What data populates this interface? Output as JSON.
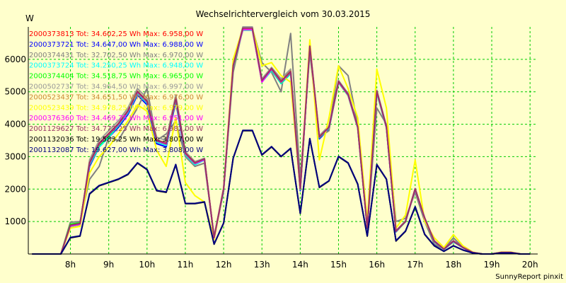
{
  "chart_data": {
    "type": "line",
    "title": "Wechselrichtervergleich vom 30.03.2015",
    "ylabel": "W",
    "xlabel": "",
    "credit": "SunnyReport pinxit",
    "x_tick_labels": [
      "8h",
      "9h",
      "10h",
      "11h",
      "12h",
      "13h",
      "14h",
      "15h",
      "16h",
      "17h",
      "18h",
      "19h",
      "20h"
    ],
    "y_ticks": [
      1000,
      2000,
      3000,
      4000,
      5000,
      6000
    ],
    "xlim": [
      6.9,
      20.2
    ],
    "ylim": [
      0,
      7000
    ],
    "grid": true,
    "legend_position": "top-left",
    "x": [
      7.0,
      7.5,
      7.75,
      8.0,
      8.25,
      8.5,
      8.75,
      9.0,
      9.25,
      9.5,
      9.75,
      10.0,
      10.25,
      10.5,
      10.75,
      11.0,
      11.25,
      11.5,
      11.75,
      12.0,
      12.25,
      12.5,
      12.75,
      13.0,
      13.25,
      13.5,
      13.75,
      14.0,
      14.25,
      14.5,
      14.75,
      15.0,
      15.25,
      15.5,
      15.75,
      16.0,
      16.25,
      16.5,
      16.75,
      17.0,
      17.25,
      17.5,
      17.75,
      18.0,
      18.25,
      18.5,
      18.75,
      19.0,
      19.25,
      19.5,
      19.75,
      20.0
    ],
    "series": [
      {
        "name": "2000373813 Tot: 34.602,25 Wh Max: 6.958,00 W",
        "color": "#ff0000",
        "values": [
          0,
          0,
          0,
          900,
          950,
          2800,
          3400,
          3700,
          4000,
          4400,
          5000,
          4700,
          3500,
          3400,
          4800,
          3100,
          2800,
          2900,
          500,
          2000,
          5800,
          6900,
          6900,
          5300,
          5700,
          5300,
          5600,
          2000,
          6400,
          3600,
          3900,
          5300,
          4900,
          3900,
          800,
          5000,
          3900,
          700,
          1000,
          2000,
          1100,
          400,
          150,
          400,
          200,
          50,
          0,
          0,
          50,
          50,
          0,
          0
        ]
      },
      {
        "name": "2000373721 Tot: 34.647,00 Wh Max: 6.988,00 W",
        "color": "#0000ff",
        "values": [
          0,
          0,
          0,
          850,
          900,
          2700,
          3300,
          3600,
          3900,
          4300,
          4900,
          4600,
          3400,
          3300,
          4700,
          3000,
          2750,
          2900,
          480,
          1950,
          5750,
          6950,
          6950,
          5350,
          5650,
          5350,
          5650,
          1950,
          6350,
          3550,
          3850,
          5300,
          4950,
          3950,
          780,
          5000,
          3900,
          680,
          1000,
          2000,
          1050,
          380,
          140,
          380,
          190,
          45,
          0,
          0,
          45,
          45,
          0,
          0
        ]
      },
      {
        "name": "2000374431 Tot: 32.702,50 Wh Max: 6.970,00 W",
        "color": "#808080",
        "values": [
          0,
          0,
          0,
          980,
          1000,
          2300,
          2700,
          3600,
          3500,
          4000,
          4500,
          5100,
          3500,
          3700,
          4100,
          3000,
          2700,
          2800,
          550,
          2000,
          5600,
          6950,
          6950,
          5900,
          5600,
          5000,
          6800,
          2300,
          6200,
          3600,
          3800,
          5800,
          5500,
          4000,
          800,
          4500,
          4000,
          1000,
          1100,
          1900,
          1000,
          300,
          150,
          500,
          200,
          50,
          0,
          0,
          50,
          50,
          0,
          0
        ]
      },
      {
        "name": "2000373724 Tot: 34.250,25 Wh Max: 6.948,00 W",
        "color": "#00ffff",
        "values": [
          0,
          0,
          0,
          900,
          950,
          2750,
          3300,
          3600,
          3950,
          4350,
          4950,
          4650,
          3450,
          3350,
          4750,
          3050,
          2750,
          2900,
          490,
          1980,
          5780,
          6900,
          6900,
          5300,
          5650,
          5250,
          5550,
          1980,
          6380,
          3580,
          3880,
          5280,
          4880,
          3880,
          790,
          4950,
          3880,
          690,
          990,
          1990,
          1090,
          390,
          140,
          390,
          195,
          48,
          0,
          0,
          48,
          48,
          0,
          0
        ]
      },
      {
        "name": "2000374404 Tot: 34.518,75 Wh Max: 6.965,00 W",
        "color": "#00ff00",
        "values": [
          0,
          0,
          0,
          920,
          960,
          2780,
          3350,
          3650,
          3980,
          4380,
          4980,
          4680,
          3480,
          3380,
          4780,
          3080,
          2780,
          2920,
          495,
          1990,
          5790,
          6920,
          6920,
          5320,
          5680,
          5280,
          5580,
          1990,
          6390,
          3590,
          3890,
          5290,
          4890,
          3890,
          795,
          4980,
          3890,
          695,
          995,
          1995,
          1095,
          395,
          145,
          395,
          198,
          49,
          0,
          0,
          49,
          49,
          0,
          0
        ]
      },
      {
        "name": "2000502737 Tot: 34.964,50 Wh Max: 6.997,00 W",
        "color": "#999999",
        "values": [
          0,
          0,
          0,
          850,
          900,
          2900,
          3500,
          3800,
          4100,
          4500,
          5100,
          4800,
          3600,
          3500,
          4900,
          3150,
          2850,
          2950,
          510,
          2050,
          5850,
          7000,
          7000,
          5400,
          5750,
          5400,
          5700,
          2050,
          6450,
          3650,
          3950,
          5350,
          4950,
          3950,
          820,
          5050,
          3950,
          720,
          1020,
          2020,
          1120,
          410,
          160,
          410,
          210,
          52,
          0,
          0,
          52,
          52,
          0,
          0
        ]
      },
      {
        "name": "2000523437 Tot: 34.651,50 Wh Max: 6.976,00 W",
        "color": "#cc8833",
        "values": [
          0,
          0,
          0,
          880,
          930,
          2820,
          3420,
          3720,
          4020,
          4420,
          5020,
          4720,
          3520,
          3420,
          4820,
          3120,
          2820,
          2920,
          505,
          2010,
          5810,
          6940,
          6940,
          5340,
          5720,
          5340,
          5640,
          2010,
          6410,
          3610,
          3910,
          5310,
          4910,
          3910,
          805,
          5010,
          3910,
          705,
          1005,
          2005,
          1105,
          400,
          150,
          400,
          200,
          50,
          0,
          0,
          50,
          50,
          0,
          0
        ]
      },
      {
        "name": "2000523439 Tot: 34.978,25 Wh Max: 6.979,00 W",
        "color": "#ffff00",
        "values": [
          0,
          0,
          0,
          800,
          850,
          2500,
          3000,
          3300,
          3700,
          4100,
          4600,
          4400,
          3200,
          2700,
          4200,
          2200,
          1800,
          1600,
          450,
          2000,
          6000,
          6950,
          6950,
          5800,
          5900,
          5500,
          5300,
          2000,
          6600,
          2900,
          4200,
          5800,
          5100,
          4200,
          1000,
          5700,
          4500,
          800,
          1200,
          2900,
          1000,
          500,
          200,
          600,
          250,
          60,
          0,
          0,
          60,
          60,
          0,
          0
        ]
      },
      {
        "name": "2000376360 Tot: 34.469,75 Wh Max: 6.951,00 W",
        "color": "#ff00ff",
        "values": [
          0,
          0,
          0,
          870,
          920,
          2790,
          3390,
          3690,
          3990,
          4390,
          4990,
          4690,
          3490,
          3390,
          4790,
          3090,
          2790,
          2910,
          500,
          2000,
          5800,
          6920,
          6920,
          5300,
          5700,
          5300,
          5600,
          2000,
          6400,
          3600,
          3900,
          5300,
          4900,
          3900,
          800,
          5000,
          3900,
          700,
          1000,
          2000,
          1100,
          400,
          150,
          400,
          200,
          50,
          0,
          0,
          50,
          50,
          0,
          0
        ]
      },
      {
        "name": "2001129627 Tot: 34.773,25 Wh Max: 6.982,00 W",
        "color": "#993366",
        "values": [
          0,
          0,
          0,
          890,
          940,
          2810,
          3410,
          3710,
          4010,
          4410,
          5010,
          4710,
          3510,
          3410,
          4810,
          3110,
          2810,
          2930,
          505,
          2010,
          5810,
          6960,
          6960,
          5350,
          5720,
          5320,
          5620,
          2010,
          6410,
          3610,
          3910,
          5320,
          4920,
          3920,
          805,
          5020,
          3920,
          705,
          1005,
          2010,
          1105,
          400,
          150,
          400,
          200,
          50,
          0,
          0,
          50,
          50,
          0,
          0
        ]
      },
      {
        "name": "2001132036 Tot: 19.583,25 Wh Max: 3.807,00 W",
        "color": "#000000",
        "values": [
          0,
          0,
          0,
          500,
          550,
          1850,
          2100,
          2200,
          2300,
          2450,
          2800,
          2600,
          1950,
          1900,
          2750,
          1550,
          1550,
          1600,
          300,
          950,
          2950,
          3800,
          3800,
          3050,
          3300,
          3000,
          3250,
          1250,
          3550,
          2050,
          2250,
          3000,
          2800,
          2150,
          550,
          2750,
          2300,
          400,
          700,
          1450,
          600,
          250,
          80,
          250,
          120,
          30,
          0,
          0,
          30,
          30,
          0,
          0
        ]
      },
      {
        "name": "2001132087 Tot: 19.627,00 Wh Max: 3.808,00 W",
        "color": "#000080",
        "values": [
          0,
          0,
          0,
          510,
          560,
          1860,
          2110,
          2210,
          2310,
          2460,
          2810,
          2610,
          1960,
          1910,
          2760,
          1560,
          1560,
          1610,
          310,
          960,
          2960,
          3810,
          3810,
          3060,
          3310,
          3010,
          3260,
          1260,
          3560,
          2060,
          2260,
          3010,
          2810,
          2160,
          560,
          2760,
          2310,
          410,
          710,
          1460,
          610,
          260,
          85,
          255,
          125,
          32,
          0,
          0,
          32,
          32,
          0,
          0
        ]
      }
    ]
  }
}
